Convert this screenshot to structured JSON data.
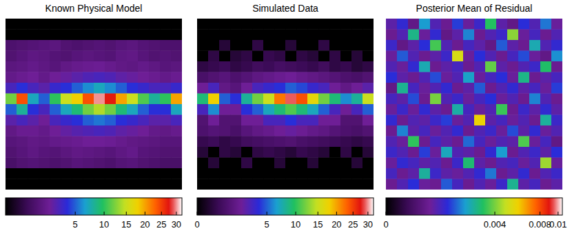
{
  "chart_data": [
    {
      "type": "heatmap",
      "title": "Known Physical Model",
      "cells": [
        [
          0,
          0,
          0,
          0,
          0,
          0,
          0,
          0,
          0,
          0,
          0,
          0,
          0,
          0,
          0,
          0
        ],
        [
          0,
          0,
          0,
          0,
          0,
          0,
          0,
          0,
          0,
          0,
          0,
          0,
          0,
          0,
          0,
          0
        ],
        [
          0.9,
          1,
          1.1,
          1.2,
          1.3,
          1,
          0.9,
          1,
          1.1,
          1,
          1.2,
          1.3,
          1.1,
          1,
          0.9,
          0.9
        ],
        [
          1,
          1.2,
          1.4,
          1.3,
          1.1,
          1,
          1.2,
          1.3,
          1.2,
          1.1,
          1.4,
          1.5,
          1.2,
          1,
          1.1,
          1
        ],
        [
          1.3,
          1.4,
          1.6,
          1.4,
          1.2,
          1.5,
          1.7,
          1.8,
          1.9,
          1.7,
          1.5,
          1.4,
          1.6,
          1.4,
          1.2,
          1.3
        ],
        [
          1.6,
          1.8,
          2,
          1.6,
          2,
          2.2,
          2.5,
          2.8,
          3,
          2.8,
          2.4,
          2.2,
          2,
          1.8,
          1.6,
          1.8
        ],
        [
          3,
          4,
          3,
          2.5,
          3.5,
          4,
          5,
          6,
          7,
          6,
          5,
          4,
          3.5,
          3,
          3,
          3.5
        ],
        [
          12,
          24,
          7,
          5,
          10,
          15,
          18,
          24,
          30,
          27,
          20,
          15,
          11,
          8,
          10,
          20
        ],
        [
          5,
          8,
          4,
          3,
          5,
          7,
          9,
          12,
          14,
          12,
          9,
          7,
          5,
          4,
          4,
          7
        ],
        [
          2.5,
          3,
          2.5,
          2,
          3,
          3.5,
          4,
          5,
          5.5,
          5,
          4,
          3.5,
          3,
          2.5,
          2.5,
          3
        ],
        [
          1.5,
          1.8,
          1.8,
          1.6,
          2,
          2.3,
          2.6,
          2.8,
          3,
          2.8,
          2.4,
          2.2,
          2,
          1.6,
          1.5,
          1.7
        ],
        [
          1.2,
          1.3,
          1.5,
          1.4,
          1.6,
          1.7,
          1.8,
          2,
          2,
          1.9,
          1.7,
          1.5,
          1.4,
          1.3,
          1.2,
          1.2
        ],
        [
          1,
          1.2,
          1.4,
          1.2,
          1.1,
          1.3,
          1.5,
          1.4,
          1.3,
          1.2,
          1.4,
          1.6,
          1.2,
          1.1,
          1,
          1
        ],
        [
          0.8,
          1,
          1.1,
          1,
          0.9,
          1,
          1.2,
          1.1,
          1,
          0.9,
          1.1,
          1.2,
          1,
          0.9,
          0.8,
          0.8
        ],
        [
          0,
          0,
          0,
          0,
          0,
          0,
          0,
          0,
          0,
          0,
          0,
          0,
          0,
          0,
          0,
          0
        ],
        [
          0,
          0,
          0,
          0,
          0,
          0,
          0,
          0,
          0,
          0,
          0,
          0,
          0,
          0,
          0,
          0
        ]
      ],
      "colorbar": {
        "range": [
          0,
          32
        ],
        "ticks": [
          5,
          10,
          15,
          20,
          25,
          30
        ]
      }
    },
    {
      "type": "heatmap",
      "title": "Simulated Data",
      "cells": [
        [
          0,
          0,
          0,
          0,
          0,
          0,
          0,
          0,
          0,
          0,
          0,
          0,
          0,
          0,
          0,
          0
        ],
        [
          0,
          0,
          0,
          0,
          0,
          0,
          0,
          0,
          0,
          0,
          0,
          0,
          0,
          0,
          0,
          0
        ],
        [
          0,
          0,
          0.2,
          0,
          0,
          0.3,
          0,
          0,
          0.2,
          0,
          0,
          0.3,
          0,
          0,
          0,
          0
        ],
        [
          0,
          0.3,
          0,
          0.2,
          0.3,
          0,
          0.4,
          0.3,
          0,
          0.3,
          0.2,
          0,
          0.3,
          0,
          0.2,
          0
        ],
        [
          0.3,
          0.4,
          0.5,
          0.3,
          0.4,
          0.6,
          0.5,
          0.7,
          0.6,
          0.5,
          0.4,
          0.6,
          0.3,
          0.4,
          0.2,
          0.3
        ],
        [
          0.8,
          1,
          1.2,
          0.9,
          1.1,
          1.4,
          1.6,
          1.8,
          2,
          1.7,
          1.5,
          1.3,
          1.1,
          0.9,
          0.8,
          1
        ],
        [
          2,
          3,
          1.5,
          1.2,
          2,
          3,
          3.5,
          4,
          5,
          4.5,
          3.5,
          3,
          2,
          1.5,
          2,
          2.5
        ],
        [
          9,
          18,
          5,
          4,
          8,
          12,
          15,
          22,
          29,
          24,
          17,
          12,
          9,
          6,
          8,
          15
        ],
        [
          3,
          6,
          2,
          2,
          4,
          5,
          7,
          9,
          11,
          9,
          7,
          5,
          3,
          2,
          3,
          5
        ],
        [
          1,
          2,
          1,
          1,
          2,
          2,
          3,
          3,
          4,
          3,
          3,
          2,
          2,
          1,
          1,
          2
        ],
        [
          0.9,
          1.1,
          1,
          0.8,
          1.2,
          1.5,
          1.7,
          2,
          2.2,
          1.9,
          1.6,
          1.4,
          1.1,
          0.9,
          0.8,
          1
        ],
        [
          0.4,
          0.5,
          0.3,
          0.4,
          0.6,
          0.7,
          0.8,
          0.9,
          1,
          0.8,
          0.7,
          0.6,
          0.5,
          0.4,
          0.3,
          0.4
        ],
        [
          0.2,
          0,
          0.3,
          0.2,
          0,
          0.3,
          0.4,
          0.3,
          0.2,
          0.4,
          0.3,
          0.2,
          0,
          0.3,
          0,
          0.2
        ],
        [
          0,
          0.2,
          0,
          0,
          0.3,
          0,
          0,
          0.2,
          0,
          0,
          0.2,
          0,
          0,
          0,
          0.2,
          0
        ],
        [
          0,
          0,
          0,
          0,
          0,
          0,
          0,
          0,
          0,
          0,
          0,
          0,
          0,
          0,
          0,
          0
        ],
        [
          0,
          0,
          0,
          0,
          0,
          0,
          0,
          0,
          0,
          0,
          0,
          0,
          0,
          0,
          0,
          0
        ]
      ],
      "colorbar": {
        "range": [
          0,
          32
        ],
        "ticks": [
          0,
          5,
          10,
          15,
          20,
          25,
          30
        ]
      }
    },
    {
      "type": "heatmap",
      "title": "Posterior Mean of Residual",
      "cells": [
        [
          0.0008,
          0.0012,
          0.0005,
          0.0021,
          0.0009,
          0.0006,
          0.0014,
          0.0007,
          0.0011,
          0.0032,
          0.0008,
          0.0005,
          0.0013,
          0.0009,
          0.0018,
          0.0007
        ],
        [
          0.0006,
          0.0009,
          0.0028,
          0.0007,
          0.0012,
          0.0005,
          0.0008,
          0.0019,
          0.0006,
          0.0009,
          0.0011,
          0.0042,
          0.0007,
          0.001,
          0.0006,
          0.0009
        ],
        [
          0.0011,
          0.0005,
          0.0008,
          0.0013,
          0.0035,
          0.0009,
          0.0006,
          0.001,
          0.0008,
          0.0005,
          0.0016,
          0.0008,
          0.0006,
          0.0024,
          0.0009,
          0.0012
        ],
        [
          0.0007,
          0.0016,
          0.0009,
          0.0006,
          0.0008,
          0.0011,
          0.0052,
          0.0007,
          0.0013,
          0.0009,
          0.0006,
          0.001,
          0.0015,
          0.0007,
          0.0005,
          0.002
        ],
        [
          0.0009,
          0.0007,
          0.0012,
          0.0024,
          0.0006,
          0.0008,
          0.001,
          0.0006,
          0.0009,
          0.0038,
          0.0008,
          0.0006,
          0.0009,
          0.0011,
          0.0031,
          0.0006
        ],
        [
          0.0013,
          0.0008,
          0.0006,
          0.0009,
          0.0015,
          0.0007,
          0.0009,
          0.0022,
          0.0007,
          0.001,
          0.0013,
          0.0007,
          0.0028,
          0.0006,
          0.0008,
          0.001
        ],
        [
          0.0005,
          0.0027,
          0.001,
          0.0007,
          0.0009,
          0.0012,
          0.0006,
          0.0008,
          0.0016,
          0.0006,
          0.0009,
          0.0012,
          0.0008,
          0.001,
          0.0007,
          0.0014
        ],
        [
          0.001,
          0.0008,
          0.0015,
          0.0006,
          0.004,
          0.0009,
          0.0011,
          0.0007,
          0.001,
          0.0013,
          0.0007,
          0.0009,
          0.0006,
          0.0019,
          0.0009,
          0.0006
        ],
        [
          0.0007,
          0.0011,
          0.0007,
          0.0012,
          0.0008,
          0.0006,
          0.0025,
          0.001,
          0.0007,
          0.0009,
          0.0034,
          0.0006,
          0.0011,
          0.0008,
          0.0012,
          0.0008
        ],
        [
          0.0012,
          0.0006,
          0.0009,
          0.0008,
          0.0011,
          0.0014,
          0.0007,
          0.0009,
          0.0058,
          0.0008,
          0.001,
          0.0007,
          0.0009,
          0.0006,
          0.0026,
          0.0011
        ],
        [
          0.0006,
          0.0019,
          0.0008,
          0.001,
          0.0007,
          0.0009,
          0.0012,
          0.0006,
          0.0009,
          0.0011,
          0.0007,
          0.0015,
          0.0008,
          0.0012,
          0.0007,
          0.0009
        ],
        [
          0.0009,
          0.0007,
          0.0033,
          0.0006,
          0.001,
          0.0008,
          0.0006,
          0.0017,
          0.001,
          0.0007,
          0.0009,
          0.0008,
          0.0036,
          0.0007,
          0.001,
          0.0005
        ],
        [
          0.0011,
          0.0009,
          0.0006,
          0.0014,
          0.0007,
          0.0023,
          0.0009,
          0.0008,
          0.0006,
          0.0012,
          0.0021,
          0.0006,
          0.0009,
          0.0011,
          0.0008,
          0.0013
        ],
        [
          0.0007,
          0.0012,
          0.001,
          0.0008,
          0.0009,
          0.0006,
          0.0011,
          0.003,
          0.0008,
          0.0006,
          0.0009,
          0.001,
          0.0007,
          0.0009,
          0.0044,
          0.0007
        ],
        [
          0.001,
          0.0006,
          0.0008,
          0.0026,
          0.0011,
          0.0008,
          0.0007,
          0.0009,
          0.0012,
          0.0018,
          0.0006,
          0.0008,
          0.0012,
          0.0006,
          0.0009,
          0.0011
        ],
        [
          0.0006,
          0.0009,
          0.0013,
          0.0007,
          0.0006,
          0.0016,
          0.001,
          0.0006,
          0.0009,
          0.0007,
          0.0011,
          0.0027,
          0.0008,
          0.001,
          0.0006,
          0.0008
        ]
      ],
      "colorbar": {
        "range": [
          0,
          0.0105
        ],
        "ticks": [
          0,
          0.004,
          0.008,
          0.01
        ]
      }
    }
  ]
}
